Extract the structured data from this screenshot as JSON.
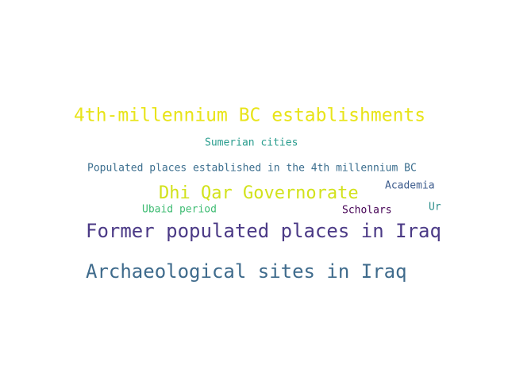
{
  "words": [
    {
      "text": "4th-millennium BC establishments",
      "color": "#e8e419"
    },
    {
      "text": "Sumerian cities",
      "color": "#2a9d8e"
    },
    {
      "text": "Populated places established in the 4th millennium BC",
      "color": "#3b6e8e"
    },
    {
      "text": "Dhi Qar Governorate",
      "color": "#d2e21b"
    },
    {
      "text": "Academia",
      "color": "#3c5b8c"
    },
    {
      "text": "Ubaid period",
      "color": "#3fbc73"
    },
    {
      "text": "Scholars",
      "color": "#440154"
    },
    {
      "text": "Ur",
      "color": "#2f8f8c"
    },
    {
      "text": "Former populated places in Iraq",
      "color": "#4b3a86"
    },
    {
      "text": "Archaeological sites in Iraq",
      "color": "#3f6b8c"
    }
  ]
}
